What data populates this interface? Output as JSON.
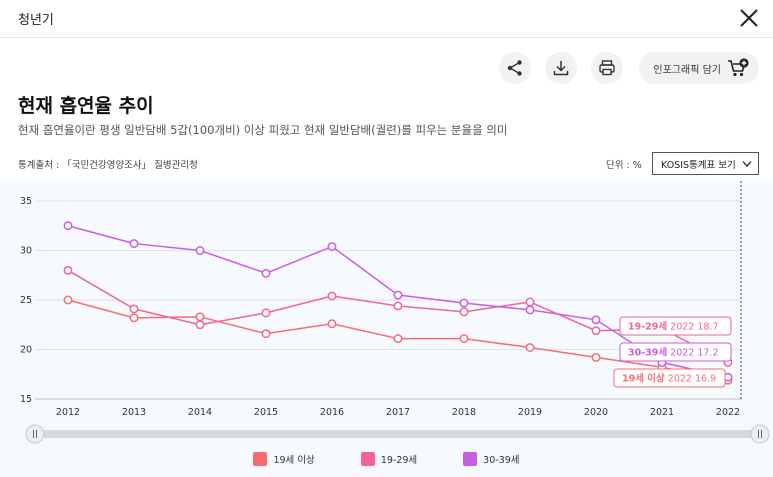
{
  "window": {
    "title": "청년기"
  },
  "actions": {
    "infographic_label": "인포그래픽 담기"
  },
  "page": {
    "title": "현재 흡연율 추이",
    "description": "현재 흡연율이란 평생 일반담배 5갑(100개비) 이상 피웠고 현재 일반담배(궐련)를 피우는 분율을 의미"
  },
  "meta": {
    "source": "통계출처 : 「국민건강영양조사」 질병관리청",
    "unit": "단위 : %",
    "kosis_label": "KOSIS통계표 보기"
  },
  "colors": {
    "s1": "#f56d72",
    "s2": "#f16495",
    "s3": "#c95ee4",
    "grid": "#dfe4ea",
    "bg": "#f6f9fd"
  },
  "chart_data": {
    "type": "line",
    "x": [
      "2012",
      "2013",
      "2014",
      "2015",
      "2016",
      "2017",
      "2018",
      "2019",
      "2020",
      "2021",
      "2022"
    ],
    "yticks": [
      "15",
      "20",
      "25",
      "30",
      "35"
    ],
    "ylim": [
      15,
      35
    ],
    "grid": true,
    "legend_position": "bottom",
    "series": [
      {
        "name": "19세 이상",
        "values": [
          25.0,
          23.2,
          23.3,
          21.6,
          22.6,
          21.1,
          21.1,
          20.2,
          19.2,
          18.2,
          16.9
        ]
      },
      {
        "name": "19-29세",
        "values": [
          28.0,
          24.1,
          22.5,
          23.7,
          25.4,
          24.4,
          23.8,
          24.8,
          21.9,
          22.1,
          18.7
        ]
      },
      {
        "name": "30-39세",
        "values": [
          32.5,
          30.7,
          30.0,
          27.7,
          30.4,
          25.5,
          24.7,
          24.0,
          23.0,
          18.7,
          17.2
        ]
      }
    ],
    "annotations": [
      {
        "series": "19-29세",
        "year": "2022",
        "value": "18.7"
      },
      {
        "series": "30-39세",
        "year": "2022",
        "value": "17.2"
      },
      {
        "series": "19세 이상",
        "year": "2022",
        "value": "16.9"
      }
    ]
  }
}
